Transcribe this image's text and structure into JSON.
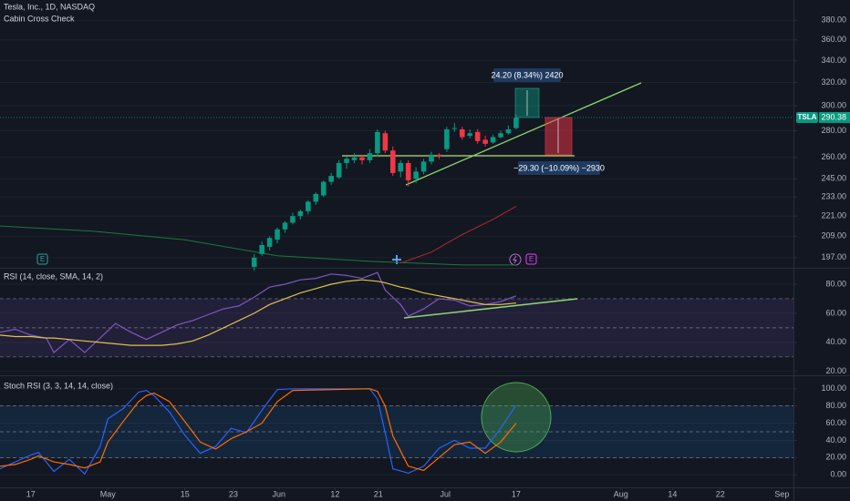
{
  "chart_data": [
    {
      "type": "candlestick",
      "title": "Tesla, Inc., 1D, NASDAQ",
      "subtitle": "Cabin Cross Check",
      "log": true,
      "xlim": [
        -4,
        99
      ],
      "ylim": [
        192,
        402
      ],
      "yticks": [
        {
          "value": 197,
          "label": "197.00"
        },
        {
          "value": 209,
          "label": "209.00"
        },
        {
          "value": 221,
          "label": "221.00"
        },
        {
          "value": 233,
          "label": "233.00"
        },
        {
          "value": 245,
          "label": "245.00"
        },
        {
          "value": 260,
          "label": "260.00"
        },
        {
          "value": 280,
          "label": "280.00"
        },
        {
          "value": 300,
          "label": "300.00"
        },
        {
          "value": 320,
          "label": "320.00"
        },
        {
          "value": 340,
          "label": "340.00"
        },
        {
          "value": 360,
          "label": "360.00"
        },
        {
          "value": 380,
          "label": "380.00"
        }
      ],
      "x": [
        29,
        30,
        31,
        32,
        33,
        34,
        35,
        36,
        37,
        38,
        39,
        40,
        41,
        42,
        43,
        44,
        45,
        46,
        47,
        48,
        49,
        50,
        51,
        52,
        53,
        54,
        55,
        56,
        57,
        58,
        59,
        60,
        61,
        62,
        63
      ],
      "open": [
        192,
        199,
        203,
        207,
        213,
        217,
        221,
        224,
        230,
        234,
        243,
        246,
        256,
        258,
        260,
        258,
        263,
        278,
        265,
        250,
        256,
        245,
        250,
        257,
        262,
        266,
        282,
        281,
        276,
        279,
        273,
        271,
        275,
        278,
        282
      ],
      "high": [
        199,
        206,
        209,
        214,
        218,
        223,
        225,
        231,
        236,
        244,
        249,
        258,
        261,
        263,
        262,
        266,
        281,
        280,
        268,
        258,
        258,
        253,
        259,
        264,
        263,
        283,
        286,
        283,
        281,
        281,
        276,
        277,
        280,
        284,
        293
      ],
      "low": [
        190,
        198,
        201,
        205,
        211,
        216,
        219,
        222,
        228,
        233,
        241,
        245,
        252,
        256,
        255,
        256,
        261,
        263,
        247,
        246,
        240,
        242,
        248,
        255,
        259,
        264,
        279,
        273,
        274,
        270,
        268,
        270,
        274,
        277,
        281
      ],
      "close": [
        197,
        204,
        208,
        213,
        217,
        221,
        224,
        230,
        235,
        243,
        247,
        256,
        259,
        260,
        258,
        263,
        279,
        265,
        249,
        256,
        244,
        250,
        257,
        262,
        261,
        281,
        282,
        275,
        278,
        272,
        270,
        275,
        278,
        281,
        290
      ],
      "up_color": "#089981",
      "down_color": "#f23645",
      "lines": [
        {
          "color": "#1b7a3a",
          "x": [
            -4,
            8,
            20,
            32,
            44,
            56,
            63
          ],
          "values": [
            215,
            212,
            207,
            198,
            195,
            193,
            193
          ]
        },
        {
          "color": "#b22833",
          "x": [
            48,
            52,
            56,
            60,
            63
          ],
          "values": [
            194,
            200,
            210,
            219,
            227
          ]
        }
      ],
      "last": {
        "label": "TSLA",
        "value": 290.38,
        "color": "#089981"
      },
      "annotations": [
        "24.20 (8.34%) 2420",
        "−29.30 (−10.09%) −2930"
      ],
      "markers": [
        "E",
        "E"
      ]
    },
    {
      "type": "line",
      "title": "RSI (14, close, SMA, 14, 2)",
      "xlim": [
        -4,
        99
      ],
      "ylim": [
        18,
        90
      ],
      "yticks": [
        {
          "value": 20,
          "label": "20.00"
        },
        {
          "value": 40,
          "label": "40.00"
        },
        {
          "value": 60,
          "label": "60.00"
        },
        {
          "value": 80,
          "label": "80.00"
        }
      ],
      "band": [
        30,
        70
      ],
      "band_color": "rgba(126,87,194,0.14)",
      "levels": [
        70,
        50,
        30
      ],
      "x": [
        -4,
        -2,
        0,
        2,
        3,
        5,
        7,
        9,
        11,
        13,
        15,
        17,
        19,
        21,
        23,
        25,
        27,
        29,
        31,
        33,
        35,
        37,
        39,
        41,
        43,
        45,
        46,
        48,
        49,
        51,
        53,
        55,
        57,
        59,
        61,
        63
      ],
      "series": [
        {
          "color": "#7e57c2",
          "values": [
            47,
            49,
            45,
            43,
            33,
            42,
            33,
            43,
            53,
            47,
            42,
            47,
            52,
            55,
            59,
            63,
            65,
            71,
            78,
            80,
            83,
            84,
            87,
            86,
            84,
            88,
            76,
            66,
            58,
            63,
            70,
            69,
            65,
            66,
            68,
            72
          ]
        },
        {
          "color": "#e0c34a",
          "values": [
            45,
            44,
            44,
            43,
            43,
            42,
            41,
            40,
            39,
            38,
            38,
            38,
            39,
            41,
            45,
            50,
            55,
            60,
            66,
            70,
            74,
            77,
            80,
            82,
            83,
            82,
            81,
            78,
            77,
            74,
            72,
            70,
            68,
            66,
            66,
            67
          ]
        }
      ]
    },
    {
      "type": "line",
      "title": "Stoch RSI (3, 3, 14, 14, close)",
      "xlim": [
        -4,
        99
      ],
      "ylim": [
        -13.5,
        113.5
      ],
      "yticks": [
        {
          "value": 0,
          "label": "0.00"
        },
        {
          "value": 20,
          "label": "20.00"
        },
        {
          "value": 40,
          "label": "40.00"
        },
        {
          "value": 60,
          "label": "60.00"
        },
        {
          "value": 80,
          "label": "80.00"
        },
        {
          "value": 100,
          "label": "100.00"
        }
      ],
      "band": [
        20,
        80
      ],
      "band_color": "rgba(33,150,243,0.12)",
      "levels": [
        80,
        50,
        20
      ],
      "x": [
        -4,
        -2,
        0,
        1,
        3,
        5,
        7,
        9,
        10,
        12,
        14,
        15,
        16,
        18,
        20,
        22,
        24,
        26,
        28,
        30,
        32,
        34,
        44,
        45,
        46,
        47,
        49,
        51,
        53,
        55,
        57,
        59,
        61,
        63
      ],
      "series": [
        {
          "color": "#2962ff",
          "values": [
            7,
            15,
            23,
            26,
            4,
            18,
            1,
            33,
            65,
            77,
            96,
            98,
            92,
            73,
            46,
            25,
            33,
            54,
            49,
            75,
            99,
            100,
            100,
            88,
            49,
            7,
            2,
            10,
            31,
            40,
            31,
            31,
            54,
            81
          ]
        },
        {
          "color": "#ff6d00",
          "values": [
            10,
            12,
            18,
            22,
            15,
            12,
            8,
            15,
            38,
            62,
            85,
            92,
            95,
            85,
            62,
            38,
            30,
            42,
            50,
            60,
            85,
            98,
            100,
            97,
            80,
            45,
            10,
            5,
            20,
            35,
            38,
            25,
            38,
            60
          ]
        }
      ],
      "xticks": [
        {
          "value": 0,
          "label": "17"
        },
        {
          "value": 10,
          "label": "May"
        },
        {
          "value": 20,
          "label": "15"
        },
        {
          "value": 26.3,
          "label": "23"
        },
        {
          "value": 32.2,
          "label": "Jun"
        },
        {
          "value": 39.5,
          "label": "12"
        },
        {
          "value": 45.1,
          "label": "21"
        },
        {
          "value": 53.8,
          "label": "Jul"
        },
        {
          "value": 63,
          "label": "17"
        },
        {
          "value": 76.6,
          "label": "Aug"
        },
        {
          "value": 83.3,
          "label": "14"
        },
        {
          "value": 89.5,
          "label": "22"
        },
        {
          "value": 97.5,
          "label": "Sep"
        }
      ]
    }
  ]
}
